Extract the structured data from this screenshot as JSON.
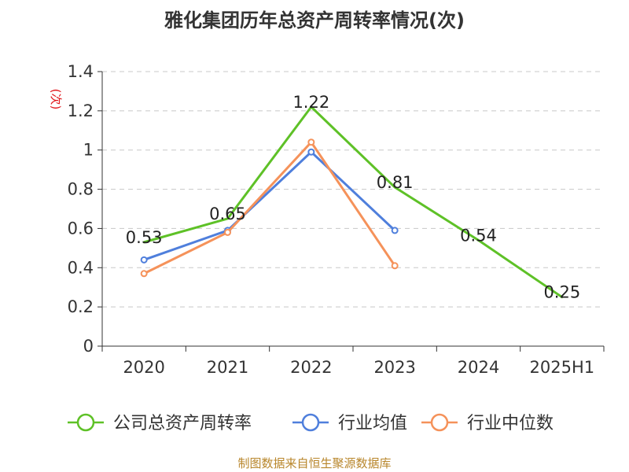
{
  "chart_data": {
    "type": "line",
    "title": "雅化集团历年总资产周转率情况(次)",
    "ylabel": "(次)",
    "xlabel": "",
    "categories": [
      "2020",
      "2021",
      "2022",
      "2023",
      "2024",
      "2025H1"
    ],
    "ylim": [
      0,
      1.4
    ],
    "yticks": [
      0,
      0.2,
      0.4,
      0.6,
      0.8,
      1,
      1.2,
      1.4
    ],
    "ytick_labels": [
      "0",
      "0.2",
      "0.4",
      "0.6",
      "0.8",
      "1",
      "1.2",
      "1.4"
    ],
    "grid": true,
    "legend_position": "bottom",
    "series": [
      {
        "name": "公司总资产周转率",
        "color": "#5ec127",
        "values": [
          0.53,
          0.65,
          1.22,
          0.81,
          0.54,
          0.25
        ],
        "markers": false,
        "data_labels": [
          "0.53",
          "0.65",
          "1.22",
          "0.81",
          "0.54",
          "0.25"
        ]
      },
      {
        "name": "行业均值",
        "color": "#4f7fdc",
        "values": [
          0.44,
          0.59,
          0.99,
          0.59,
          null,
          null
        ],
        "markers": true
      },
      {
        "name": "行业中位数",
        "color": "#f5925a",
        "values": [
          0.37,
          0.58,
          1.04,
          0.41,
          null,
          null
        ],
        "markers": true
      }
    ],
    "source": "制图数据来自恒生聚源数据库"
  }
}
